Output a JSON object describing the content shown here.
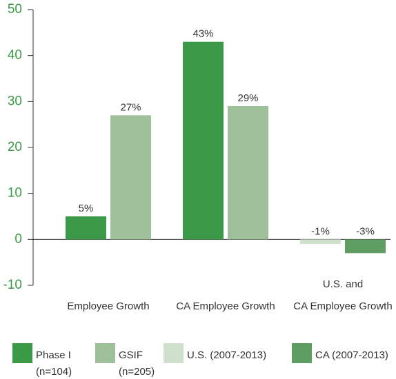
{
  "chart_data": {
    "type": "bar",
    "categories": [
      "Employee Growth",
      "CA Employee Growth",
      [
        "U.S. and",
        "CA Employee Growth"
      ]
    ],
    "series": [
      {
        "name": [
          "Phase I",
          "(n=104)"
        ],
        "color": "#3a9a47",
        "values": [
          5,
          43,
          null
        ],
        "value_labels": [
          "5%",
          "43%",
          null
        ]
      },
      {
        "name": [
          "GSIF",
          "(n=205)"
        ],
        "color": "#9dc09a",
        "values": [
          27,
          29,
          null
        ],
        "value_labels": [
          "27%",
          "29%",
          null
        ]
      },
      {
        "name": [
          "U.S. (2007-2013)"
        ],
        "color": "#cfe0cc",
        "values": [
          null,
          null,
          -1
        ],
        "value_labels": [
          null,
          null,
          "-1%"
        ]
      },
      {
        "name": [
          "CA (2007-2013)"
        ],
        "color": "#5e9e63",
        "values": [
          null,
          null,
          -3
        ],
        "value_labels": [
          null,
          null,
          "-3%"
        ]
      }
    ],
    "ylim": [
      -10,
      50
    ],
    "yticks": [
      -10,
      0,
      10,
      20,
      30,
      40,
      50
    ],
    "grid": false
  }
}
